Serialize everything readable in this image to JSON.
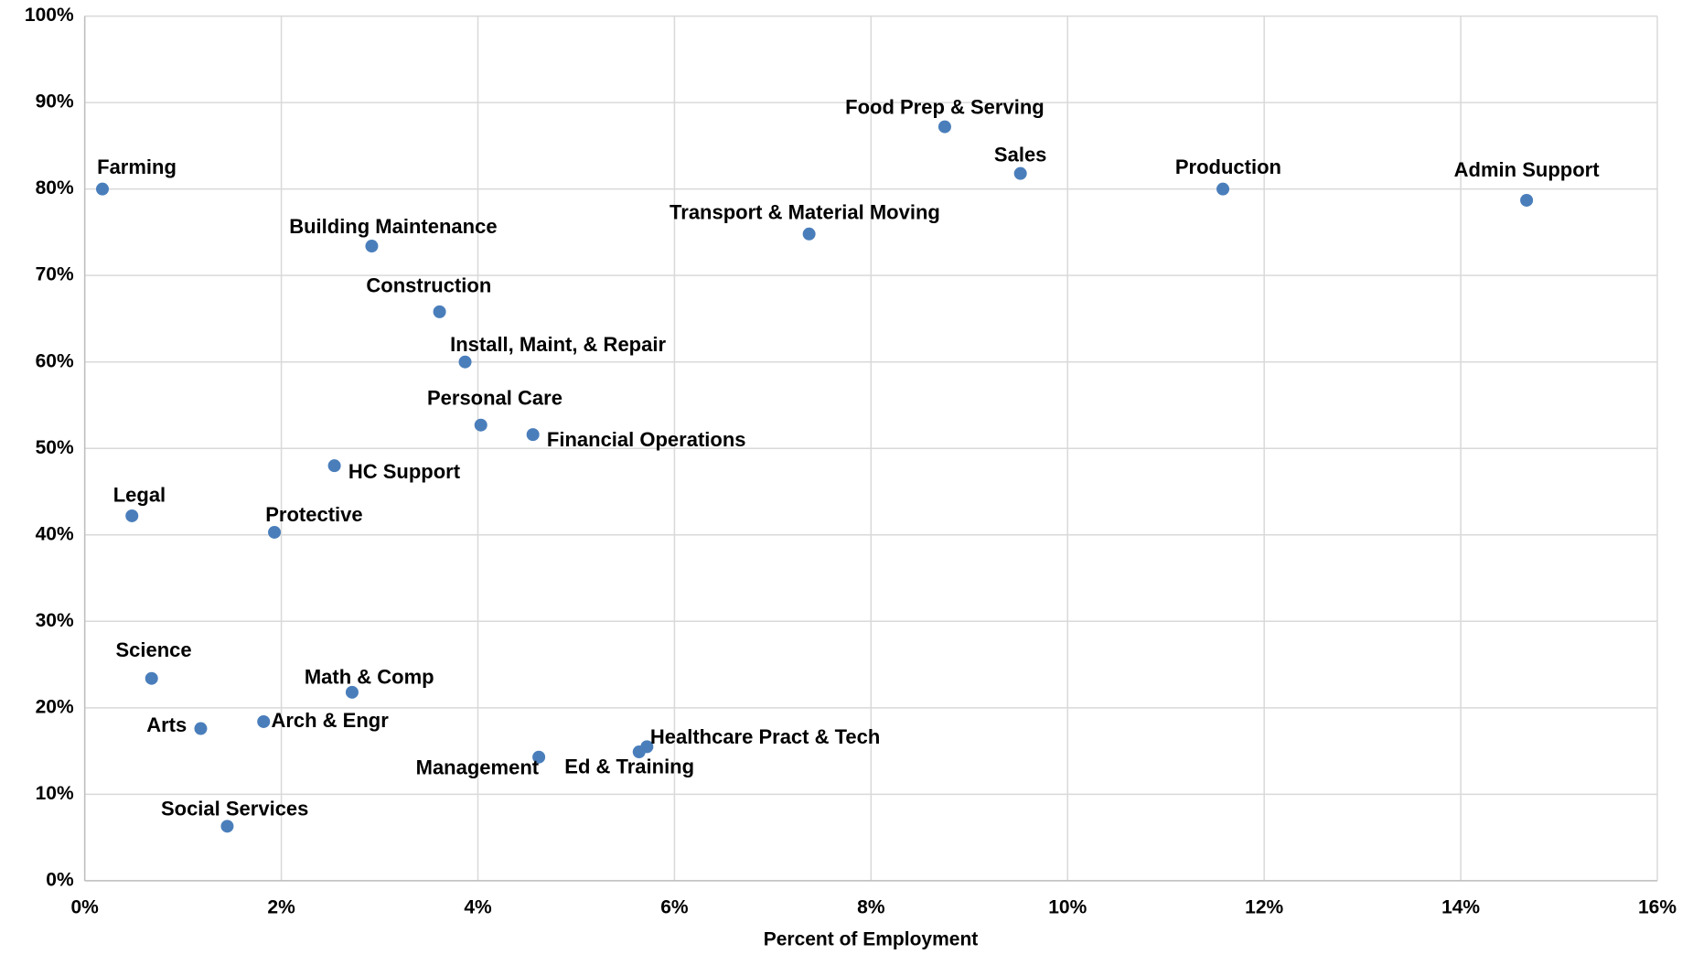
{
  "chart_data": {
    "type": "scatter",
    "x_label": "Percent of Employment",
    "xlim": [
      0,
      16
    ],
    "xticks": [
      {
        "value": 0,
        "label": "0%"
      },
      {
        "value": 2,
        "label": "2%"
      },
      {
        "value": 4,
        "label": "4%"
      },
      {
        "value": 6,
        "label": "6%"
      },
      {
        "value": 8,
        "label": "8%"
      },
      {
        "value": 10,
        "label": "10%"
      },
      {
        "value": 12,
        "label": "12%"
      },
      {
        "value": 14,
        "label": "14%"
      },
      {
        "value": 16,
        "label": "16%"
      }
    ],
    "ylim": [
      0,
      100
    ],
    "yticks": [
      {
        "value": 0,
        "label": "0%"
      },
      {
        "value": 10,
        "label": "10%"
      },
      {
        "value": 20,
        "label": "20%"
      },
      {
        "value": 30,
        "label": "30%"
      },
      {
        "value": 40,
        "label": "40%"
      },
      {
        "value": 50,
        "label": "50%"
      },
      {
        "value": 60,
        "label": "60%"
      },
      {
        "value": 70,
        "label": "70%"
      },
      {
        "value": 80,
        "label": "80%"
      },
      {
        "value": 90,
        "label": "90%"
      },
      {
        "value": 100,
        "label": "100%"
      }
    ],
    "grid": true,
    "color": "#4a7ebb",
    "labels": [
      "Farming",
      "Admin Support",
      "Production",
      "Sales",
      "Food Prep & Serving",
      "Transport & Material Moving",
      "Building Maintenance",
      "Construction",
      "Install, Maint, & Repair",
      "Personal Care",
      "Financial Operations",
      "HC Support",
      "Legal",
      "Protective",
      "Science",
      "Math & Comp",
      "Arch & Engr",
      "Arts",
      "Management",
      "Ed & Training",
      "Healthcare Pract & Tech",
      "Social Services"
    ],
    "x": [
      0.18,
      14.67,
      11.58,
      9.52,
      8.75,
      7.37,
      2.92,
      3.61,
      3.87,
      4.03,
      4.56,
      2.54,
      0.48,
      1.93,
      0.68,
      2.72,
      1.82,
      1.18,
      4.62,
      5.64,
      5.72,
      1.45
    ],
    "values": [
      80.0,
      78.7,
      80.0,
      81.8,
      87.2,
      74.8,
      73.4,
      65.8,
      60.0,
      52.7,
      51.6,
      48.0,
      42.2,
      40.3,
      23.4,
      21.8,
      18.4,
      17.6,
      14.3,
      14.9,
      15.5,
      6.3
    ]
  }
}
